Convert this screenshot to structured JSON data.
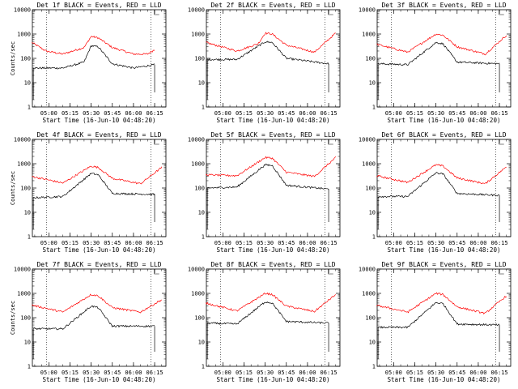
{
  "chart_data": [
    {
      "type": "line",
      "title": "Det 1f BLACK = Events, RED = LLD",
      "xlabel": "Start Time (16-Jun-10 04:48:20)",
      "ylabel": "Counts/sec",
      "x_ticks": [
        "05:00",
        "05:15",
        "05:30",
        "05:45",
        "06:00",
        "06:15"
      ],
      "y_ticks": [
        "1",
        "10",
        "100",
        "1000",
        "10000"
      ],
      "yscale": "log",
      "ylim": [
        1,
        10000
      ],
      "series": [
        {
          "color": "#ff0000",
          "values": [
            {
              "t": "04:48",
              "v": 450
            },
            {
              "t": "04:58",
              "v": 200
            },
            {
              "t": "05:10",
              "v": 150
            },
            {
              "t": "05:25",
              "v": 280
            },
            {
              "t": "05:30",
              "v": 800
            },
            {
              "t": "05:35",
              "v": 700
            },
            {
              "t": "05:45",
              "v": 280
            },
            {
              "t": "06:00",
              "v": 150
            },
            {
              "t": "06:10",
              "v": 150
            },
            {
              "t": "06:15",
              "v": 230
            }
          ]
        },
        {
          "color": "#000000",
          "values": [
            {
              "t": "04:49",
              "v": 40
            },
            {
              "t": "05:10",
              "v": 40
            },
            {
              "t": "05:25",
              "v": 70
            },
            {
              "t": "05:30",
              "v": 330
            },
            {
              "t": "05:35",
              "v": 300
            },
            {
              "t": "05:45",
              "v": 60
            },
            {
              "t": "06:00",
              "v": 40
            },
            {
              "t": "06:15",
              "v": 55
            }
          ]
        }
      ]
    },
    {
      "type": "line",
      "title": "Det 2f BLACK = Events, RED = LLD",
      "xlabel": "Start Time (16-Jun-10 04:48:20)",
      "ylabel": "",
      "x_ticks": [
        "05:00",
        "05:15",
        "05:30",
        "05:45",
        "06:00",
        "06:15"
      ],
      "y_ticks": [
        "1",
        "10",
        "100",
        "1000",
        "10000"
      ],
      "yscale": "log",
      "ylim": [
        1,
        10000
      ],
      "series": [
        {
          "color": "#ff0000",
          "values": [
            {
              "t": "04:48",
              "v": 450
            },
            {
              "t": "05:10",
              "v": 200
            },
            {
              "t": "05:25",
              "v": 400
            },
            {
              "t": "05:30",
              "v": 1100
            },
            {
              "t": "05:35",
              "v": 1000
            },
            {
              "t": "05:45",
              "v": 350
            },
            {
              "t": "06:05",
              "v": 180
            },
            {
              "t": "06:20",
              "v": 1100
            }
          ]
        },
        {
          "color": "#000000",
          "values": [
            {
              "t": "04:49",
              "v": 90
            },
            {
              "t": "05:10",
              "v": 90
            },
            {
              "t": "05:30",
              "v": 480
            },
            {
              "t": "05:35",
              "v": 450
            },
            {
              "t": "05:45",
              "v": 100
            },
            {
              "t": "06:15",
              "v": 60
            }
          ]
        }
      ]
    },
    {
      "type": "line",
      "title": "Det 3f BLACK = Events, RED = LLD",
      "xlabel": "Start Time (16-Jun-10 04:48:20)",
      "ylabel": "",
      "x_ticks": [
        "05:00",
        "05:15",
        "05:30",
        "05:45",
        "06:00",
        "06:15"
      ],
      "y_ticks": [
        "1",
        "10",
        "100",
        "1000",
        "10000"
      ],
      "yscale": "log",
      "ylim": [
        1,
        10000
      ],
      "series": [
        {
          "color": "#ff0000",
          "values": [
            {
              "t": "04:48",
              "v": 380
            },
            {
              "t": "05:10",
              "v": 180
            },
            {
              "t": "05:30",
              "v": 1000
            },
            {
              "t": "05:35",
              "v": 900
            },
            {
              "t": "05:45",
              "v": 300
            },
            {
              "t": "06:05",
              "v": 150
            },
            {
              "t": "06:20",
              "v": 900
            }
          ]
        },
        {
          "color": "#000000",
          "values": [
            {
              "t": "04:49",
              "v": 60
            },
            {
              "t": "05:10",
              "v": 55
            },
            {
              "t": "05:30",
              "v": 450
            },
            {
              "t": "05:35",
              "v": 400
            },
            {
              "t": "05:45",
              "v": 70
            },
            {
              "t": "06:15",
              "v": 60
            }
          ]
        }
      ]
    },
    {
      "type": "line",
      "title": "Det 4f BLACK = Events, RED = LLD",
      "xlabel": "Start Time (16-Jun-10 04:48:20)",
      "ylabel": "Counts/sec",
      "x_ticks": [
        "05:00",
        "05:15",
        "05:30",
        "05:45",
        "06:00",
        "06:15"
      ],
      "y_ticks": [
        "1",
        "10",
        "100",
        "1000",
        "10000"
      ],
      "yscale": "log",
      "ylim": [
        1,
        10000
      ],
      "series": [
        {
          "color": "#ff0000",
          "values": [
            {
              "t": "04:48",
              "v": 300
            },
            {
              "t": "05:10",
              "v": 160
            },
            {
              "t": "05:30",
              "v": 800
            },
            {
              "t": "05:35",
              "v": 700
            },
            {
              "t": "05:45",
              "v": 250
            },
            {
              "t": "06:05",
              "v": 150
            },
            {
              "t": "06:20",
              "v": 700
            }
          ]
        },
        {
          "color": "#000000",
          "values": [
            {
              "t": "04:49",
              "v": 40
            },
            {
              "t": "05:10",
              "v": 45
            },
            {
              "t": "05:30",
              "v": 400
            },
            {
              "t": "05:35",
              "v": 350
            },
            {
              "t": "05:45",
              "v": 60
            },
            {
              "t": "06:15",
              "v": 55
            }
          ]
        }
      ]
    },
    {
      "type": "line",
      "title": "Det 5f BLACK = Events, RED = LLD",
      "xlabel": "Start Time (16-Jun-10 04:48:20)",
      "ylabel": "",
      "x_ticks": [
        "05:00",
        "05:15",
        "05:30",
        "05:45",
        "06:00",
        "06:15"
      ],
      "y_ticks": [
        "1",
        "10",
        "100",
        "1000",
        "10000"
      ],
      "yscale": "log",
      "ylim": [
        1,
        10000
      ],
      "series": [
        {
          "color": "#ff0000",
          "values": [
            {
              "t": "04:48",
              "v": 350
            },
            {
              "t": "05:10",
              "v": 320
            },
            {
              "t": "05:30",
              "v": 1800
            },
            {
              "t": "05:35",
              "v": 1700
            },
            {
              "t": "05:45",
              "v": 450
            },
            {
              "t": "06:05",
              "v": 300
            },
            {
              "t": "06:20",
              "v": 1800
            }
          ]
        },
        {
          "color": "#000000",
          "values": [
            {
              "t": "04:49",
              "v": 100
            },
            {
              "t": "05:10",
              "v": 110
            },
            {
              "t": "05:30",
              "v": 900
            },
            {
              "t": "05:35",
              "v": 850
            },
            {
              "t": "05:45",
              "v": 130
            },
            {
              "t": "06:15",
              "v": 90
            }
          ]
        }
      ]
    },
    {
      "type": "line",
      "title": "Det 6f BLACK = Events, RED = LLD",
      "xlabel": "Start Time (16-Jun-10 04:48:20)",
      "ylabel": "",
      "x_ticks": [
        "05:00",
        "05:15",
        "05:30",
        "05:45",
        "06:00",
        "06:15"
      ],
      "y_ticks": [
        "1",
        "10",
        "100",
        "1000",
        "10000"
      ],
      "yscale": "log",
      "ylim": [
        1,
        10000
      ],
      "series": [
        {
          "color": "#ff0000",
          "values": [
            {
              "t": "04:48",
              "v": 320
            },
            {
              "t": "05:10",
              "v": 170
            },
            {
              "t": "05:30",
              "v": 900
            },
            {
              "t": "05:35",
              "v": 800
            },
            {
              "t": "05:45",
              "v": 260
            },
            {
              "t": "06:05",
              "v": 150
            },
            {
              "t": "06:20",
              "v": 750
            }
          ]
        },
        {
          "color": "#000000",
          "values": [
            {
              "t": "04:49",
              "v": 45
            },
            {
              "t": "05:10",
              "v": 45
            },
            {
              "t": "05:30",
              "v": 420
            },
            {
              "t": "05:35",
              "v": 380
            },
            {
              "t": "05:45",
              "v": 60
            },
            {
              "t": "06:15",
              "v": 50
            }
          ]
        }
      ]
    },
    {
      "type": "line",
      "title": "Det 7f BLACK = Events, RED = LLD",
      "xlabel": "Start Time (16-Jun-10 04:48:20)",
      "ylabel": "Counts/sec",
      "x_ticks": [
        "05:00",
        "05:15",
        "05:30",
        "05:45",
        "06:00",
        "06:15"
      ],
      "y_ticks": [
        "1",
        "10",
        "100",
        "1000",
        "10000"
      ],
      "yscale": "log",
      "ylim": [
        1,
        10000
      ],
      "series": [
        {
          "color": "#ff0000",
          "values": [
            {
              "t": "04:48",
              "v": 330
            },
            {
              "t": "05:10",
              "v": 170
            },
            {
              "t": "05:30",
              "v": 900
            },
            {
              "t": "05:35",
              "v": 800
            },
            {
              "t": "05:45",
              "v": 260
            },
            {
              "t": "06:05",
              "v": 170
            },
            {
              "t": "06:20",
              "v": 550
            }
          ]
        },
        {
          "color": "#000000",
          "values": [
            {
              "t": "04:49",
              "v": 35
            },
            {
              "t": "05:10",
              "v": 35
            },
            {
              "t": "05:30",
              "v": 300
            },
            {
              "t": "05:35",
              "v": 260
            },
            {
              "t": "05:45",
              "v": 45
            },
            {
              "t": "06:15",
              "v": 45
            }
          ]
        }
      ]
    },
    {
      "type": "line",
      "title": "Det 8f BLACK = Events, RED = LLD",
      "xlabel": "Start Time (16-Jun-10 04:48:20)",
      "ylabel": "",
      "x_ticks": [
        "05:00",
        "05:15",
        "05:30",
        "05:45",
        "06:00",
        "06:15"
      ],
      "y_ticks": [
        "1",
        "10",
        "100",
        "1000",
        "10000"
      ],
      "yscale": "log",
      "ylim": [
        1,
        10000
      ],
      "series": [
        {
          "color": "#ff0000",
          "values": [
            {
              "t": "04:48",
              "v": 400
            },
            {
              "t": "05:10",
              "v": 190
            },
            {
              "t": "05:30",
              "v": 1000
            },
            {
              "t": "05:35",
              "v": 900
            },
            {
              "t": "05:45",
              "v": 300
            },
            {
              "t": "06:05",
              "v": 180
            },
            {
              "t": "06:20",
              "v": 900
            }
          ]
        },
        {
          "color": "#000000",
          "values": [
            {
              "t": "04:49",
              "v": 60
            },
            {
              "t": "05:10",
              "v": 55
            },
            {
              "t": "05:30",
              "v": 450
            },
            {
              "t": "05:35",
              "v": 400
            },
            {
              "t": "05:45",
              "v": 70
            },
            {
              "t": "06:15",
              "v": 60
            }
          ]
        }
      ]
    },
    {
      "type": "line",
      "title": "Det 9f BLACK = Events, RED = LLD",
      "xlabel": "Start Time (16-Jun-10 04:48:20)",
      "ylabel": "",
      "x_ticks": [
        "05:00",
        "05:15",
        "05:30",
        "05:45",
        "06:00",
        "06:15"
      ],
      "y_ticks": [
        "1",
        "10",
        "100",
        "1000",
        "10000"
      ],
      "yscale": "log",
      "ylim": [
        1,
        10000
      ],
      "series": [
        {
          "color": "#ff0000",
          "values": [
            {
              "t": "04:48",
              "v": 320
            },
            {
              "t": "05:10",
              "v": 170
            },
            {
              "t": "05:30",
              "v": 1000
            },
            {
              "t": "05:35",
              "v": 900
            },
            {
              "t": "05:45",
              "v": 280
            },
            {
              "t": "06:05",
              "v": 150
            },
            {
              "t": "06:20",
              "v": 800
            }
          ]
        },
        {
          "color": "#000000",
          "values": [
            {
              "t": "04:49",
              "v": 40
            },
            {
              "t": "05:10",
              "v": 40
            },
            {
              "t": "05:30",
              "v": 420
            },
            {
              "t": "05:35",
              "v": 380
            },
            {
              "t": "05:45",
              "v": 55
            },
            {
              "t": "06:15",
              "v": 50
            }
          ]
        }
      ]
    }
  ]
}
